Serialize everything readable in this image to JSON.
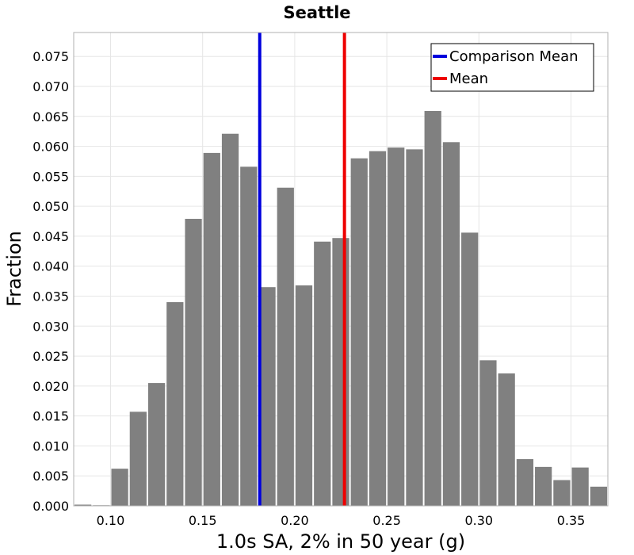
{
  "chart_data": {
    "type": "bar",
    "title": "Seattle",
    "xlabel": "1.0s SA, 2% in 50 year (g)",
    "ylabel": "Fraction",
    "xlim": [
      0.08,
      0.37
    ],
    "ylim": [
      0,
      0.079
    ],
    "bin_width": 0.01,
    "bin_centers": [
      0.085,
      0.095,
      0.105,
      0.115,
      0.125,
      0.135,
      0.145,
      0.155,
      0.165,
      0.175,
      0.185,
      0.195,
      0.205,
      0.215,
      0.225,
      0.235,
      0.245,
      0.255,
      0.265,
      0.275,
      0.285,
      0.295,
      0.305,
      0.315,
      0.325,
      0.335,
      0.345,
      0.355,
      0.365
    ],
    "values": [
      0.0002,
      0.0001,
      0.0062,
      0.0157,
      0.0205,
      0.034,
      0.0479,
      0.0589,
      0.0621,
      0.0566,
      0.0365,
      0.0531,
      0.0368,
      0.0441,
      0.0447,
      0.058,
      0.0592,
      0.0598,
      0.0595,
      0.0659,
      0.0607,
      0.0456,
      0.0243,
      0.0221,
      0.0078,
      0.0065,
      0.0043,
      0.0064,
      0.0032
    ],
    "bar_color": "#808080",
    "vlines": [
      {
        "name": "Comparison Mean",
        "x": 0.181,
        "color": "#0000dd"
      },
      {
        "name": "Mean",
        "x": 0.227,
        "color": "#ee0000"
      }
    ],
    "xticks": [
      "0.10",
      "0.15",
      "0.20",
      "0.25",
      "0.30",
      "0.35"
    ],
    "yticks": [
      "0.000",
      "0.005",
      "0.010",
      "0.015",
      "0.020",
      "0.025",
      "0.030",
      "0.035",
      "0.040",
      "0.045",
      "0.050",
      "0.055",
      "0.060",
      "0.065",
      "0.070",
      "0.075"
    ],
    "grid": true,
    "legend_position": "top-right"
  }
}
